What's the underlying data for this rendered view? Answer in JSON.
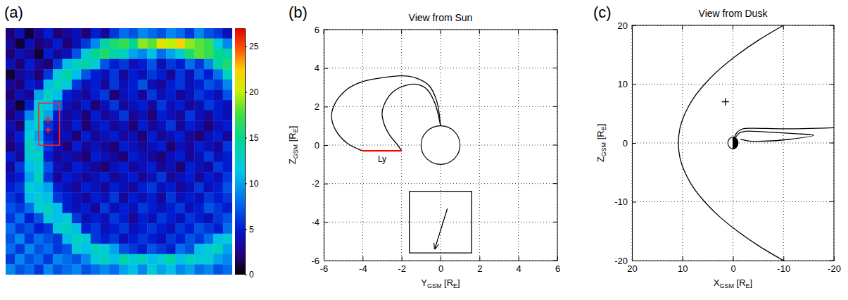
{
  "chart_data": [
    {
      "type": "heatmap",
      "label": "(a)",
      "values": [
        [
          2,
          4,
          1,
          3,
          5,
          2,
          3,
          4,
          2,
          5,
          3,
          6,
          8,
          7,
          9,
          8,
          7,
          9,
          8,
          6,
          9,
          7,
          6,
          4
        ],
        [
          3,
          1,
          4,
          2,
          3,
          5,
          2,
          4,
          6,
          9,
          14,
          16,
          17,
          15,
          19,
          18,
          21,
          20,
          22,
          19,
          18,
          17,
          12,
          9
        ],
        [
          2,
          4,
          3,
          1,
          5,
          3,
          4,
          7,
          12,
          15,
          16,
          14,
          13,
          10,
          9,
          11,
          8,
          10,
          12,
          16,
          18,
          17,
          15,
          14
        ],
        [
          4,
          2,
          5,
          3,
          2,
          6,
          11,
          13,
          14,
          12,
          7,
          5,
          6,
          4,
          5,
          7,
          4,
          6,
          5,
          8,
          6,
          9,
          14,
          16
        ],
        [
          1,
          3,
          4,
          2,
          6,
          12,
          14,
          11,
          7,
          5,
          4,
          6,
          3,
          5,
          4,
          6,
          5,
          3,
          6,
          4,
          7,
          5,
          8,
          13
        ],
        [
          3,
          2,
          5,
          4,
          11,
          13,
          12,
          6,
          4,
          5,
          3,
          6,
          4,
          5,
          7,
          4,
          3,
          5,
          6,
          4,
          5,
          7,
          6,
          9
        ],
        [
          2,
          4,
          3,
          10,
          13,
          11,
          5,
          4,
          3,
          5,
          6,
          2,
          4,
          5,
          3,
          6,
          4,
          5,
          3,
          4,
          6,
          5,
          4,
          7
        ],
        [
          3,
          1,
          5,
          12,
          11,
          8,
          4,
          3,
          5,
          2,
          4,
          6,
          3,
          4,
          5,
          3,
          6,
          4,
          5,
          3,
          4,
          6,
          5,
          4
        ],
        [
          2,
          4,
          9,
          13,
          10,
          5,
          3,
          4,
          2,
          5,
          3,
          4,
          6,
          3,
          4,
          2,
          5,
          4,
          3,
          6,
          4,
          3,
          5,
          4
        ],
        [
          4,
          2,
          11,
          12,
          6,
          4,
          3,
          5,
          2,
          4,
          5,
          3,
          4,
          2,
          5,
          3,
          4,
          6,
          3,
          5,
          4,
          2,
          4,
          5
        ],
        [
          3,
          5,
          12,
          10,
          5,
          3,
          4,
          2,
          5,
          3,
          4,
          5,
          3,
          4,
          2,
          5,
          3,
          4,
          5,
          3,
          2,
          4,
          5,
          3
        ],
        [
          2,
          4,
          13,
          11,
          6,
          4,
          2,
          5,
          3,
          4,
          3,
          2,
          5,
          4,
          3,
          4,
          5,
          2,
          4,
          3,
          5,
          4,
          3,
          6
        ],
        [
          5,
          3,
          12,
          13,
          5,
          3,
          4,
          3,
          2,
          5,
          4,
          3,
          2,
          5,
          4,
          3,
          2,
          4,
          5,
          3,
          4,
          6,
          4,
          5
        ],
        [
          3,
          6,
          11,
          12,
          7,
          4,
          3,
          5,
          4,
          3,
          2,
          4,
          5,
          3,
          4,
          5,
          3,
          4,
          2,
          5,
          4,
          3,
          6,
          5
        ],
        [
          4,
          5,
          10,
          13,
          6,
          3,
          5,
          4,
          3,
          4,
          5,
          3,
          4,
          5,
          3,
          4,
          6,
          3,
          4,
          5,
          3,
          5,
          4,
          6
        ],
        [
          5,
          6,
          12,
          11,
          10,
          5,
          4,
          3,
          5,
          4,
          3,
          5,
          4,
          3,
          5,
          6,
          4,
          5,
          3,
          4,
          6,
          4,
          5,
          7
        ],
        [
          6,
          5,
          11,
          12,
          11,
          6,
          5,
          4,
          3,
          5,
          4,
          6,
          3,
          5,
          4,
          5,
          3,
          6,
          4,
          5,
          4,
          6,
          5,
          6
        ],
        [
          7,
          6,
          8,
          12,
          13,
          11,
          5,
          4,
          5,
          3,
          6,
          4,
          5,
          4,
          6,
          5,
          4,
          5,
          6,
          4,
          5,
          7,
          6,
          5
        ],
        [
          6,
          8,
          5,
          7,
          12,
          11,
          12,
          6,
          4,
          5,
          4,
          6,
          5,
          3,
          5,
          4,
          6,
          5,
          4,
          6,
          5,
          4,
          6,
          7
        ],
        [
          8,
          6,
          7,
          5,
          6,
          12,
          13,
          11,
          5,
          6,
          4,
          5,
          6,
          4,
          5,
          6,
          5,
          4,
          6,
          5,
          7,
          6,
          5,
          8
        ],
        [
          7,
          9,
          6,
          8,
          7,
          6,
          11,
          13,
          12,
          6,
          5,
          6,
          4,
          5,
          6,
          5,
          4,
          6,
          5,
          7,
          6,
          8,
          11,
          12
        ],
        [
          8,
          6,
          9,
          7,
          8,
          6,
          7,
          12,
          11,
          13,
          12,
          10,
          7,
          6,
          5,
          7,
          6,
          5,
          8,
          7,
          11,
          12,
          13,
          10
        ],
        [
          6,
          9,
          7,
          8,
          6,
          9,
          8,
          7,
          9,
          12,
          13,
          11,
          14,
          12,
          13,
          11,
          12,
          14,
          11,
          13,
          12,
          12,
          10,
          9
        ],
        [
          9,
          7,
          8,
          6,
          9,
          7,
          8,
          9,
          7,
          8,
          9,
          8,
          10,
          11,
          9,
          12,
          10,
          11,
          9,
          10,
          8,
          9,
          7,
          8
        ]
      ],
      "zlim": [
        0,
        27
      ],
      "zticks": [
        0,
        5,
        10,
        15,
        20,
        25
      ],
      "box": {
        "x": [
          3.5,
          5.7
        ],
        "y": [
          7.3,
          11.4
        ]
      },
      "markers": {
        "x": [
          4.5,
          4.5
        ],
        "y": [
          8.9,
          9.9
        ]
      }
    },
    {
      "type": "line",
      "label": "(b)",
      "title": "View from Sun",
      "xlabel": [
        "Y",
        "GSM",
        " [R",
        "E",
        "]"
      ],
      "ylabel": [
        "Z",
        "GSM",
        " [R",
        "E",
        "]"
      ],
      "xlim": [
        -6,
        6
      ],
      "ylim": [
        -6,
        6
      ],
      "xticks": [
        -6,
        -4,
        -2,
        0,
        2,
        4,
        6
      ],
      "yticks": [
        -6,
        -4,
        -2,
        0,
        2,
        4,
        6
      ],
      "grid": true,
      "circles": [
        {
          "x": 0,
          "y": 0,
          "r": 1
        }
      ],
      "series": [
        {
          "x": [
            0,
            -0.2,
            -0.6,
            -1.3,
            -2.0,
            -3.0,
            -4.0,
            -4.8,
            -5.4,
            -5.6,
            -5.4,
            -4.8,
            -4.0
          ],
          "y": [
            1.0,
            2.3,
            3.1,
            3.5,
            3.6,
            3.5,
            3.3,
            2.9,
            2.2,
            1.5,
            0.8,
            0.1,
            -0.3
          ]
        },
        {
          "x": [
            0,
            -0.3,
            -0.7,
            -1.2,
            -1.8,
            -2.4,
            -2.8,
            -3.0,
            -2.9,
            -2.6,
            -2.2,
            -2.0
          ],
          "y": [
            1.0,
            2.2,
            2.9,
            3.15,
            3.1,
            2.8,
            2.3,
            1.7,
            1.1,
            0.5,
            0.0,
            -0.3
          ]
        },
        {
          "x": [
            -4,
            -2
          ],
          "y": [
            -0.3,
            -0.3
          ],
          "color": "#ff0000"
        },
        {
          "x": [
            -1.6,
            1.6,
            1.6,
            -1.6,
            -1.6
          ],
          "y": [
            -2.4,
            -2.4,
            -5.6,
            -5.6,
            -2.4
          ]
        },
        {
          "x": [
            0.35,
            -0.3
          ],
          "y": [
            -3.3,
            -5.4
          ],
          "marker": "arrow"
        }
      ],
      "annotations": [
        {
          "text": "Ly",
          "x": -3,
          "y": -0.55
        }
      ]
    },
    {
      "type": "line",
      "label": "(c)",
      "title": "View from Dusk",
      "xlabel": [
        "X",
        "GSM",
        " [R",
        "E",
        "]"
      ],
      "ylabel": [
        "Z",
        "GSM",
        " [R",
        "E",
        "]"
      ],
      "xlim": [
        20,
        -20
      ],
      "ylim": [
        -20,
        20
      ],
      "xticks": [
        20,
        10,
        0,
        -10,
        -20
      ],
      "yticks": [
        -20,
        -10,
        0,
        10,
        20
      ],
      "grid": true,
      "circles": [
        {
          "x": 0,
          "y": 0,
          "r": 1
        }
      ],
      "series": [
        {
          "x": [
            -10.0,
            -5.1,
            -0.9,
            2.7,
            5.6,
            7.9,
            9.5,
            10.5,
            10.8,
            10.5,
            9.5,
            7.9,
            5.6,
            2.7,
            -0.9,
            -5.1,
            -10.0
          ],
          "y": [
            -20,
            -17.5,
            -15,
            -12.5,
            -10,
            -7.5,
            -5,
            -2.5,
            0,
            2.5,
            5,
            7.5,
            10,
            12.5,
            15,
            17.5,
            20
          ]
        },
        {
          "x": [
            -0.3,
            -0.8,
            -2,
            -4,
            -10,
            -20
          ],
          "y": [
            0.95,
            1.8,
            2.4,
            2.5,
            2.4,
            2.6
          ]
        },
        {
          "x": [
            -0.5,
            -1.3,
            -2.5,
            -6,
            -12,
            -16,
            -11,
            -6,
            -3,
            -1.5
          ],
          "y": [
            0.9,
            1.7,
            2.0,
            1.9,
            1.6,
            1.3,
            0.6,
            0.3,
            0.35,
            0.6
          ]
        },
        {
          "type": "scatter",
          "marker": "plus",
          "x": [
            1.5
          ],
          "y": [
            7
          ]
        }
      ]
    }
  ]
}
